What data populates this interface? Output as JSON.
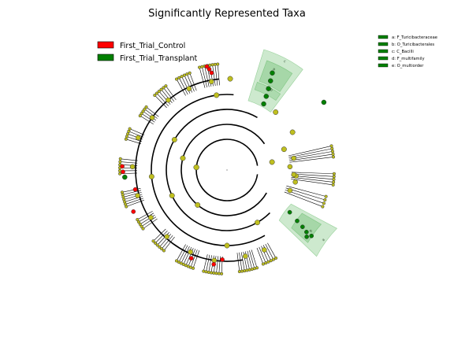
{
  "chart_data": {
    "type": "cladogram",
    "title": "Significantly Represented Taxa",
    "legend": [
      {
        "label": "First_Trial_Control",
        "color": "#ff0000"
      },
      {
        "label": "First_Trial_Transplant",
        "color": "#008000"
      }
    ],
    "clade_legend": [
      {
        "letter": "a",
        "label": "a: F_Turicibacteraceae",
        "color": "#008000"
      },
      {
        "letter": "b",
        "label": "b: O_Turicibacterales",
        "color": "#008000"
      },
      {
        "letter": "c",
        "label": "c: C_Bacilli",
        "color": "#008000"
      },
      {
        "letter": "d",
        "label": "d: F_multifamily",
        "color": "#008000"
      },
      {
        "letter": "e",
        "label": "e: O_multiorder",
        "color": "#008000"
      }
    ],
    "colors": {
      "neutral": "#bfbf1f",
      "control": "#ff0000",
      "transplant": "#008000",
      "highlight": "#4caf50"
    }
  }
}
